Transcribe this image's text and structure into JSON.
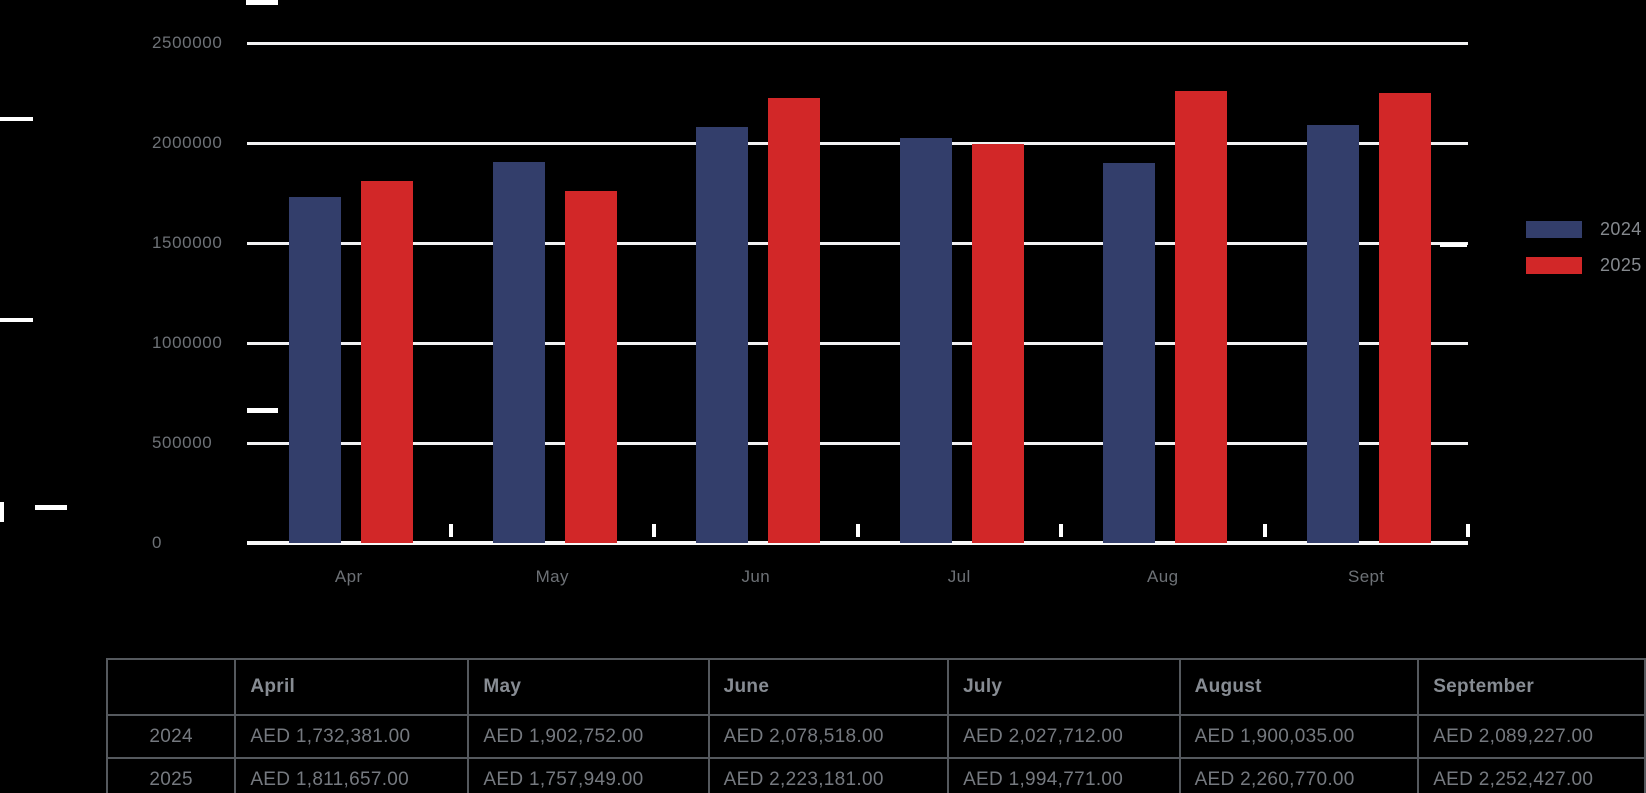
{
  "chart_data": {
    "type": "bar",
    "title": "",
    "categories": [
      "Apr",
      "May",
      "Jun",
      "Jul",
      "Aug",
      "Sept"
    ],
    "series": [
      {
        "name": "2024",
        "color": "#333e6b",
        "values": [
          1732381,
          1902752,
          2078518,
          2027712,
          1900035,
          2089227
        ]
      },
      {
        "name": "2025",
        "color": "#d22728",
        "values": [
          1811657,
          1757949,
          2223181,
          1994771,
          2260770,
          2252427
        ]
      }
    ],
    "xlabel": "",
    "ylabel": "",
    "ylim": [
      0,
      2500000
    ],
    "y_tick_labels": [
      "0",
      "500000",
      "1000000",
      "1500000",
      "2000000",
      "2500000"
    ],
    "grid": true,
    "legend_position": "right"
  },
  "legend": {
    "items": [
      {
        "label": "2024",
        "color": "#333e6b"
      },
      {
        "label": "2025",
        "color": "#d22728"
      }
    ]
  },
  "table": {
    "columns": [
      "",
      "April",
      "May",
      "June",
      "July",
      "August",
      "September"
    ],
    "rows": [
      {
        "label": "2024",
        "values": [
          "AED 1,732,381.00",
          "AED 1,902,752.00",
          "AED 2,078,518.00",
          "AED 2,027,712.00",
          "AED 1,900,035.00",
          "AED 2,089,227.00"
        ]
      },
      {
        "label": "2025",
        "values": [
          "AED 1,811,657.00",
          "AED 1,757,949.00",
          "AED 2,223,181.00",
          "AED 1,994,771.00",
          "AED 2,260,770.00",
          "AED 2,252,427.00"
        ]
      }
    ]
  },
  "colors": {
    "background": "#000000",
    "bar_2024": "#333e6b",
    "bar_2025": "#d22728",
    "gridline": "#f2f2f3",
    "axis_line": "#f8f8f8",
    "axis_text": "#6d7176",
    "legend_text": "#85898e",
    "table_border": "#55595e",
    "table_header_text": "#878c93",
    "table_value_text": "#75797f"
  }
}
